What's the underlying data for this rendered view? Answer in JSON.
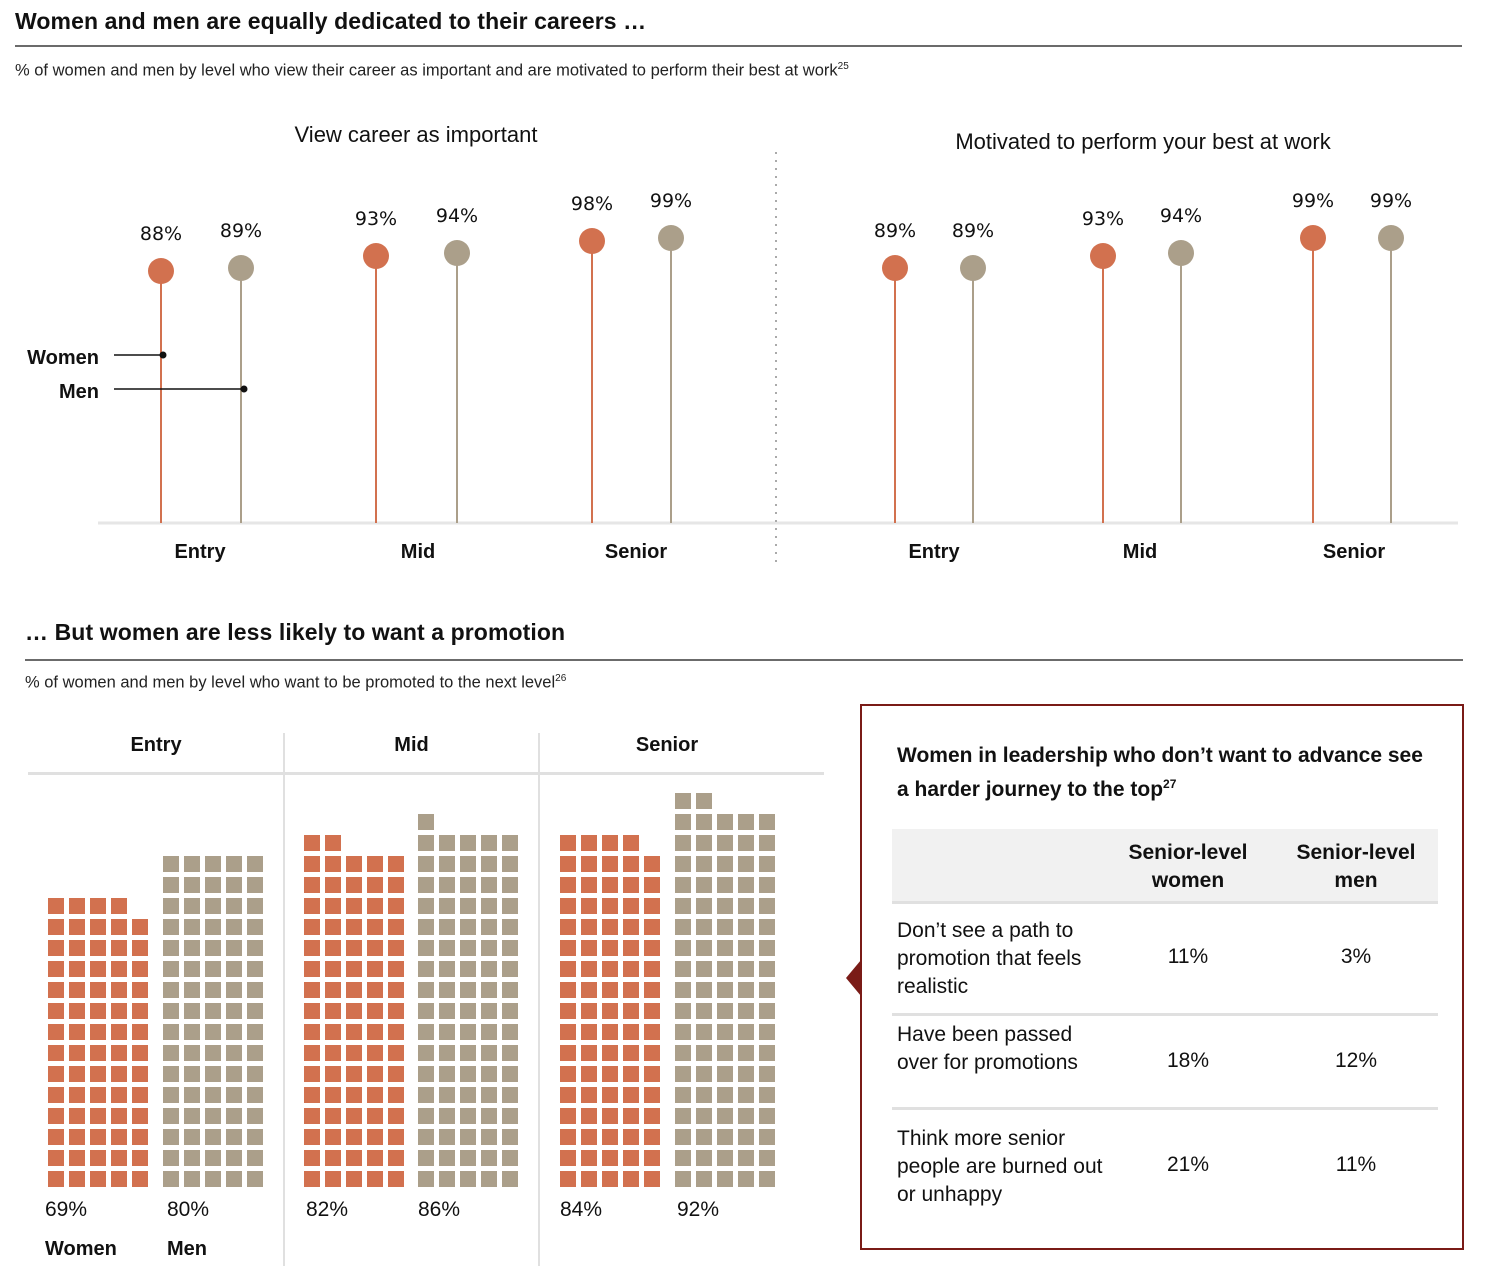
{
  "colors": {
    "women": "#d2714f",
    "men": "#ab9f8a",
    "callout_border": "#7a1b17",
    "divider": "#6b6b6b",
    "gridline": "#e0e0e0"
  },
  "section1": {
    "title": "Women and men are equally dedicated to their careers …",
    "subtitle": "% of women and men by level who view their career as important and are motivated to perform their best at work",
    "subtitle_footnote": "25"
  },
  "section2": {
    "title": "… But women are less likely to want a promotion",
    "subtitle": "% of women and men by level who want to be promoted to the next level",
    "subtitle_footnote": "26"
  },
  "legend": {
    "women": "Women",
    "men": "Men"
  },
  "chart_data": [
    {
      "type": "lollipop",
      "title": "View career as important",
      "categories": [
        "Entry",
        "Mid",
        "Senior"
      ],
      "series": [
        {
          "name": "Women",
          "values": [
            88,
            93,
            98
          ],
          "labels": [
            "88%",
            "93%",
            "98%"
          ]
        },
        {
          "name": "Men",
          "values": [
            89,
            94,
            99
          ],
          "labels": [
            "89%",
            "94%",
            "99%"
          ]
        }
      ],
      "unit": "%",
      "legend": "left-inline"
    },
    {
      "type": "lollipop",
      "title": "Motivated to perform your best at work",
      "categories": [
        "Entry",
        "Mid",
        "Senior"
      ],
      "series": [
        {
          "name": "Women",
          "values": [
            89,
            93,
            99
          ],
          "labels": [
            "89%",
            "93%",
            "99%"
          ]
        },
        {
          "name": "Men",
          "values": [
            89,
            94,
            99
          ],
          "labels": [
            "89%",
            "94%",
            "99%"
          ]
        }
      ],
      "unit": "%"
    },
    {
      "type": "waffle",
      "title": "% of women and men by level who want to be promoted to the next level",
      "categories": [
        "Entry",
        "Mid",
        "Senior"
      ],
      "series": [
        {
          "name": "Women",
          "values": [
            69,
            82,
            84
          ],
          "labels": [
            "69%",
            "82%",
            "84%"
          ]
        },
        {
          "name": "Men",
          "values": [
            80,
            86,
            92
          ],
          "labels": [
            "80%",
            "86%",
            "92%"
          ]
        }
      ],
      "unit": "%",
      "legend": "bottom-left"
    },
    {
      "type": "table",
      "title": "Women in leadership who don’t want to advance see a harder journey to the top",
      "title_footnote": "27",
      "columns": [
        "",
        "Senior-level women",
        "Senior-level men"
      ],
      "rows": [
        {
          "label": "Don’t see a path to promotion that feels realistic",
          "values": [
            "11%",
            "3%"
          ]
        },
        {
          "label": "Have been passed over for promotions",
          "values": [
            "18%",
            "12%"
          ]
        },
        {
          "label": "Think more senior people are burned out or unhappy",
          "values": [
            "21%",
            "11%"
          ]
        }
      ]
    }
  ],
  "callout": {
    "title": "Women in leadership who don’t want to advance see a harder journey to the top",
    "title_footnote": "27",
    "col_women_line1": "Senior-level",
    "col_women_line2": "women",
    "col_men_line1": "Senior-level",
    "col_men_line2": "men",
    "rows": [
      {
        "label": "Don’t see a path to promotion that feels realistic",
        "women": "11%",
        "men": "3%"
      },
      {
        "label": "Have been passed over for promotions",
        "women": "18%",
        "men": "12%"
      },
      {
        "label": "Think more senior people are burned out or unhappy",
        "women": "21%",
        "men": "11%"
      }
    ]
  }
}
